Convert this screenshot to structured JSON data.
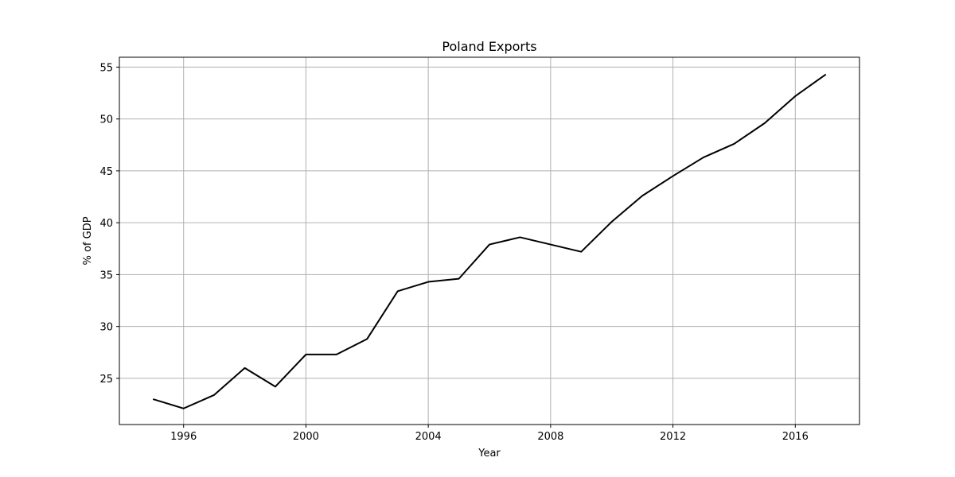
{
  "chart_data": {
    "type": "line",
    "title": "Poland Exports",
    "xlabel": "Year",
    "ylabel": "% of GDP",
    "x": [
      1995,
      1996,
      1997,
      1998,
      1999,
      2000,
      2001,
      2002,
      2003,
      2004,
      2005,
      2006,
      2007,
      2008,
      2009,
      2010,
      2011,
      2012,
      2013,
      2014,
      2015,
      2016,
      2017
    ],
    "series": [
      {
        "values": [
          23.0,
          22.1,
          23.4,
          26.0,
          24.2,
          27.3,
          27.3,
          28.8,
          33.4,
          34.3,
          34.6,
          37.9,
          38.6,
          37.9,
          37.2,
          40.1,
          42.6,
          44.5,
          46.3,
          47.6,
          49.6,
          52.2,
          54.3
        ]
      }
    ],
    "xlim": [
      1993.9,
      2018.1
    ],
    "ylim": [
      20.55,
      55.95
    ],
    "xticks": [
      1996,
      2000,
      2004,
      2008,
      2012,
      2016
    ],
    "yticks": [
      25,
      30,
      35,
      40,
      45,
      50,
      55
    ],
    "grid": true,
    "colors": {
      "line": "#000000",
      "grid": "#b0b0b0",
      "frame": "#000000"
    }
  }
}
